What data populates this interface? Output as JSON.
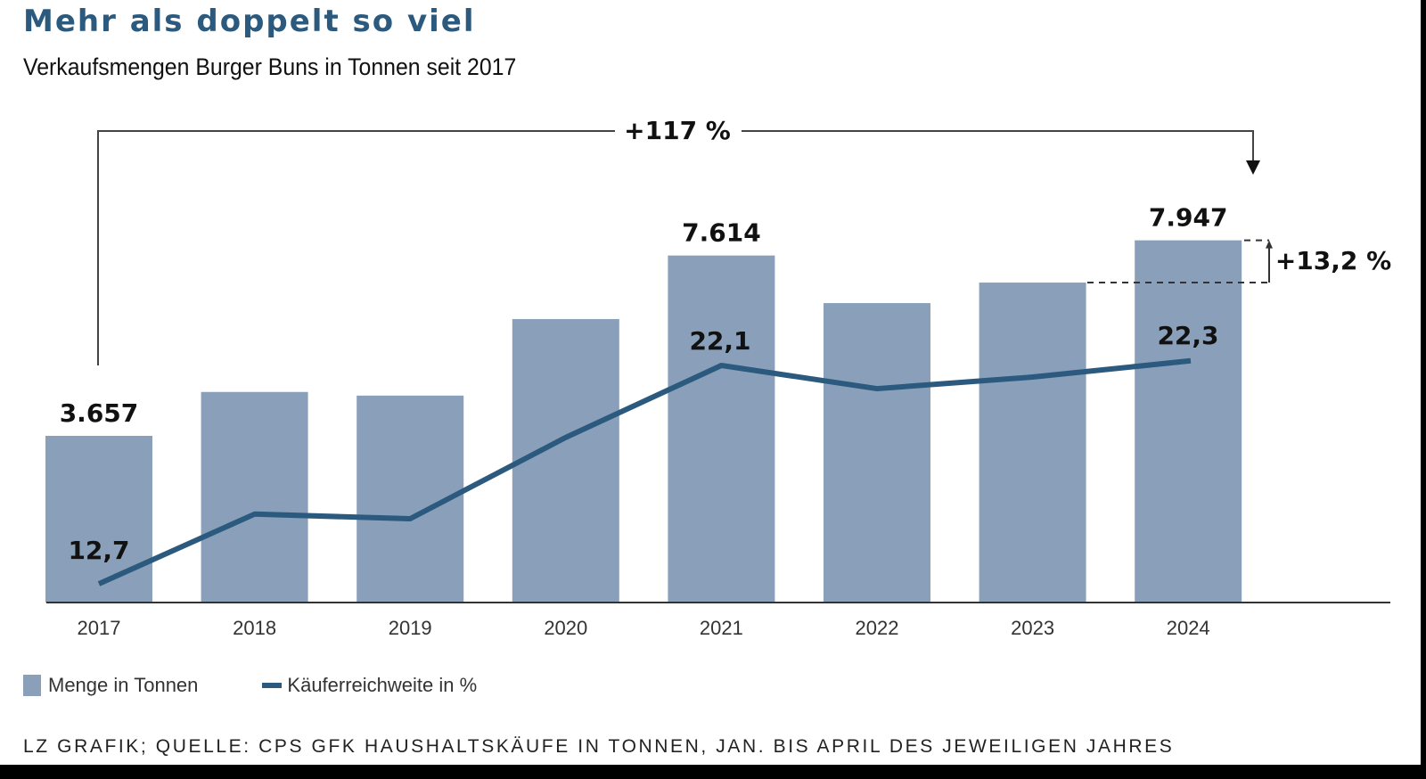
{
  "chart_data": {
    "type": "bar",
    "title": "Mehr als doppelt so viel",
    "subtitle": "Verkaufsmengen Burger Buns in Tonnen seit 2017",
    "categories": [
      "2017",
      "2018",
      "2019",
      "2020",
      "2021",
      "2022",
      "2023",
      "2024"
    ],
    "series": [
      {
        "name": "Menge in Tonnen",
        "type": "bar",
        "color": "#8aa0ba",
        "values": [
          3657,
          4620,
          4540,
          6220,
          7614,
          6570,
          7020,
          7947
        ],
        "labels": {
          "0": "3.657",
          "4": "7.614",
          "7": "7.947"
        }
      },
      {
        "name": "Käuferreichweite in %",
        "type": "line",
        "color": "#2b5a7e",
        "values": [
          12.7,
          15.7,
          15.5,
          19.0,
          22.1,
          21.1,
          21.6,
          22.3
        ],
        "labels": {
          "0": "12,7",
          "4": "22,1",
          "7": "22,3"
        }
      }
    ],
    "annotations": [
      {
        "text": "+117 %",
        "from": "2017",
        "to": "2024",
        "kind": "bracket-arrow"
      },
      {
        "text": "+13,2 %",
        "from": "2023",
        "to": "2024",
        "kind": "dashed-range"
      }
    ],
    "xlabel": "",
    "ylabel": "",
    "ylim": [
      0,
      9000
    ],
    "grid": false,
    "legend_position": "bottom-left"
  },
  "legend": {
    "bar_label": "Menge in Tonnen",
    "line_label": "Käuferreichweite in %"
  },
  "source": "LZ GRAFIK; QUELLE: CPS GFK HAUSHALTSKÄUFE IN TONNEN,  JAN. BIS APRIL DES JEWEILIGEN JAHRES"
}
